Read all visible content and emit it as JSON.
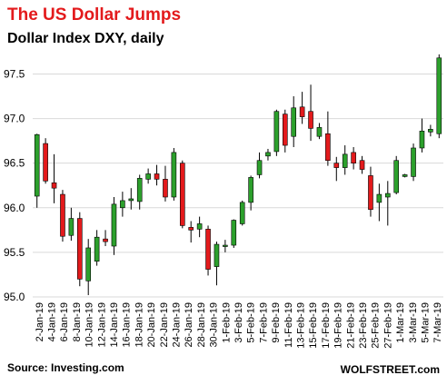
{
  "header": {
    "title": "The US Dollar  Jumps",
    "subtitle": "Dollar Index DXY, daily"
  },
  "footer": {
    "source": "Source: Investing.com",
    "brand": "WOLFSTREET.com"
  },
  "colors": {
    "up": "#2ca02c",
    "down": "#e31a1c",
    "wick": "#000000",
    "grid": "#d9d9d9",
    "title": "#e31a1c"
  },
  "chart_data": {
    "type": "candlestick",
    "title": "Dollar Index DXY, daily",
    "xlabel": "",
    "ylabel": "",
    "ylim": [
      95.0,
      97.8
    ],
    "yticks": [
      "95.0",
      "95.5",
      "96.0",
      "96.5",
      "97.0",
      "97.5"
    ],
    "grid": "horizontal",
    "xtick_labels": [
      "2-Jan-19",
      "4-Jan-19",
      "6-Jan-19",
      "8-Jan-19",
      "10-Jan-19",
      "12-Jan-19",
      "14-Jan-19",
      "16-Jan-19",
      "18-Jan-19",
      "20-Jan-19",
      "22-Jan-19",
      "24-Jan-19",
      "26-Jan-19",
      "28-Jan-19",
      "30-Jan-19",
      "1-Feb-19",
      "3-Feb-19",
      "5-Feb-19",
      "7-Feb-19",
      "9-Feb-19",
      "11-Feb-19",
      "13-Feb-19",
      "15-Feb-19",
      "17-Feb-19",
      "19-Feb-19",
      "21-Feb-19",
      "23-Feb-19",
      "25-Feb-19",
      "27-Feb-19",
      "1-Mar-19",
      "3-Mar-19",
      "5-Mar-19",
      "7-Mar-19"
    ],
    "candles": [
      {
        "date": "2-Jan-19",
        "open": 96.13,
        "high": 96.83,
        "low": 96.0,
        "close": 96.82
      },
      {
        "date": "3-Jan-19",
        "open": 96.72,
        "high": 96.78,
        "low": 96.27,
        "close": 96.3
      },
      {
        "date": "4-Jan-19",
        "open": 96.28,
        "high": 96.6,
        "low": 96.05,
        "close": 96.22
      },
      {
        "date": "7-Jan-19",
        "open": 96.15,
        "high": 96.2,
        "low": 95.62,
        "close": 95.68
      },
      {
        "date": "8-Jan-19",
        "open": 95.69,
        "high": 96.0,
        "low": 95.63,
        "close": 95.88
      },
      {
        "date": "9-Jan-19",
        "open": 95.88,
        "high": 95.95,
        "low": 95.12,
        "close": 95.2
      },
      {
        "date": "10-Jan-19",
        "open": 95.18,
        "high": 95.65,
        "low": 95.02,
        "close": 95.55
      },
      {
        "date": "11-Jan-19",
        "open": 95.4,
        "high": 95.75,
        "low": 95.35,
        "close": 95.67
      },
      {
        "date": "14-Jan-19",
        "open": 95.65,
        "high": 95.75,
        "low": 95.57,
        "close": 95.62
      },
      {
        "date": "15-Jan-19",
        "open": 95.57,
        "high": 96.12,
        "low": 95.47,
        "close": 96.04
      },
      {
        "date": "16-Jan-19",
        "open": 96.0,
        "high": 96.18,
        "low": 95.9,
        "close": 96.08
      },
      {
        "date": "17-Jan-19",
        "open": 96.08,
        "high": 96.22,
        "low": 95.98,
        "close": 96.1
      },
      {
        "date": "18-Jan-19",
        "open": 96.07,
        "high": 96.37,
        "low": 95.98,
        "close": 96.33
      },
      {
        "date": "21-Jan-19",
        "open": 96.32,
        "high": 96.44,
        "low": 96.27,
        "close": 96.38
      },
      {
        "date": "22-Jan-19",
        "open": 96.38,
        "high": 96.48,
        "low": 96.25,
        "close": 96.32
      },
      {
        "date": "23-Jan-19",
        "open": 96.32,
        "high": 96.47,
        "low": 96.07,
        "close": 96.12
      },
      {
        "date": "24-Jan-19",
        "open": 96.12,
        "high": 96.67,
        "low": 96.08,
        "close": 96.62
      },
      {
        "date": "25-Jan-19",
        "open": 96.5,
        "high": 96.53,
        "low": 95.77,
        "close": 95.8
      },
      {
        "date": "28-Jan-19",
        "open": 95.78,
        "high": 95.85,
        "low": 95.61,
        "close": 95.75
      },
      {
        "date": "29-Jan-19",
        "open": 95.76,
        "high": 95.9,
        "low": 95.67,
        "close": 95.82
      },
      {
        "date": "30-Jan-19",
        "open": 95.76,
        "high": 95.8,
        "low": 95.24,
        "close": 95.31
      },
      {
        "date": "31-Jan-19",
        "open": 95.34,
        "high": 95.62,
        "low": 95.13,
        "close": 95.59
      },
      {
        "date": "1-Feb-19",
        "open": 95.57,
        "high": 95.64,
        "low": 95.5,
        "close": 95.58
      },
      {
        "date": "4-Feb-19",
        "open": 95.58,
        "high": 95.87,
        "low": 95.55,
        "close": 95.86
      },
      {
        "date": "5-Feb-19",
        "open": 95.82,
        "high": 96.08,
        "low": 95.8,
        "close": 96.06
      },
      {
        "date": "6-Feb-19",
        "open": 96.06,
        "high": 96.36,
        "low": 95.97,
        "close": 96.34
      },
      {
        "date": "7-Feb-19",
        "open": 96.37,
        "high": 96.62,
        "low": 96.33,
        "close": 96.53
      },
      {
        "date": "8-Feb-19",
        "open": 96.58,
        "high": 96.66,
        "low": 96.53,
        "close": 96.62
      },
      {
        "date": "11-Feb-19",
        "open": 96.63,
        "high": 97.1,
        "low": 96.58,
        "close": 97.08
      },
      {
        "date": "12-Feb-19",
        "open": 97.05,
        "high": 97.1,
        "low": 96.62,
        "close": 96.7
      },
      {
        "date": "13-Feb-19",
        "open": 96.8,
        "high": 97.25,
        "low": 96.68,
        "close": 97.12
      },
      {
        "date": "14-Feb-19",
        "open": 97.13,
        "high": 97.3,
        "low": 96.94,
        "close": 97.02
      },
      {
        "date": "15-Feb-19",
        "open": 97.08,
        "high": 97.38,
        "low": 96.75,
        "close": 96.89
      },
      {
        "date": "18-Feb-19",
        "open": 96.8,
        "high": 96.95,
        "low": 96.77,
        "close": 96.9
      },
      {
        "date": "19-Feb-19",
        "open": 96.83,
        "high": 97.08,
        "low": 96.47,
        "close": 96.53
      },
      {
        "date": "20-Feb-19",
        "open": 96.5,
        "high": 96.57,
        "low": 96.3,
        "close": 96.45
      },
      {
        "date": "21-Feb-19",
        "open": 96.45,
        "high": 96.7,
        "low": 96.37,
        "close": 96.6
      },
      {
        "date": "22-Feb-19",
        "open": 96.62,
        "high": 96.68,
        "low": 96.43,
        "close": 96.5
      },
      {
        "date": "25-Feb-19",
        "open": 96.53,
        "high": 96.58,
        "low": 96.38,
        "close": 96.43
      },
      {
        "date": "26-Feb-19",
        "open": 96.36,
        "high": 96.46,
        "low": 95.9,
        "close": 95.98
      },
      {
        "date": "27-Feb-19",
        "open": 96.06,
        "high": 96.27,
        "low": 95.85,
        "close": 96.15
      },
      {
        "date": "28-Feb-19",
        "open": 96.12,
        "high": 96.3,
        "low": 95.8,
        "close": 96.16
      },
      {
        "date": "1-Mar-19",
        "open": 96.17,
        "high": 96.58,
        "low": 96.15,
        "close": 96.53
      },
      {
        "date": "4-Mar-19",
        "open": 96.35,
        "high": 96.38,
        "low": 96.34,
        "close": 96.37
      },
      {
        "date": "5-Mar-19",
        "open": 96.35,
        "high": 96.72,
        "low": 96.3,
        "close": 96.67
      },
      {
        "date": "6-Mar-19",
        "open": 96.67,
        "high": 97.0,
        "low": 96.62,
        "close": 96.86
      },
      {
        "date": "7-Mar-19",
        "open": 96.85,
        "high": 96.93,
        "low": 96.8,
        "close": 96.88
      },
      {
        "date": "8-Mar-19",
        "open": 96.83,
        "high": 97.72,
        "low": 96.78,
        "close": 97.68
      }
    ]
  }
}
